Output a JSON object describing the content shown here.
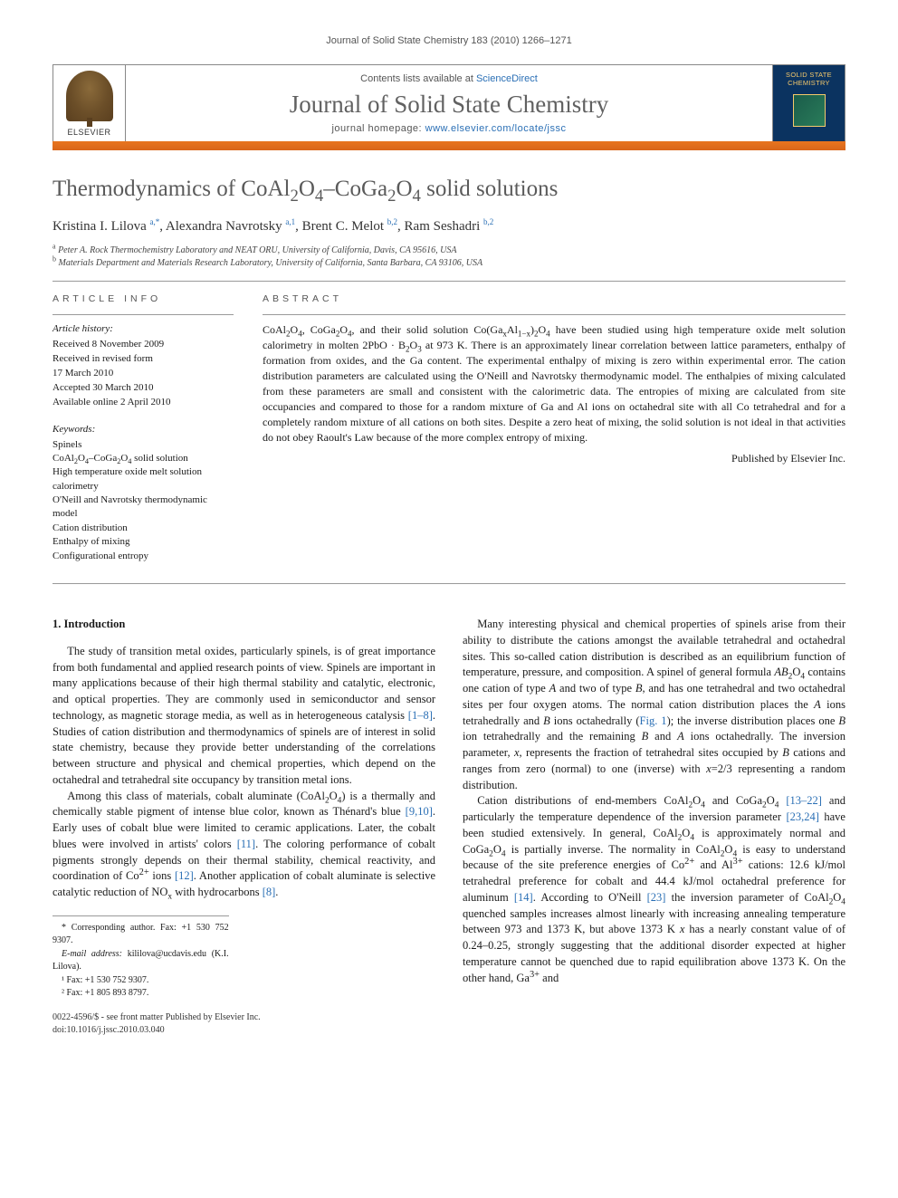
{
  "running_head": "Journal of Solid State Chemistry 183 (2010) 1266–1271",
  "header": {
    "contents_prefix": "Contents lists available at ",
    "contents_link": "ScienceDirect",
    "journal": "Journal of Solid State Chemistry",
    "homepage_prefix": "journal homepage: ",
    "homepage_url": "www.elsevier.com/locate/jssc",
    "publisher": "ELSEVIER",
    "cover_label_1": "SOLID STATE",
    "cover_label_2": "CHEMISTRY"
  },
  "accent_color": "#e8751f",
  "title_html": "Thermodynamics of CoAl<sub>2</sub>O<sub>4</sub>–CoGa<sub>2</sub>O<sub>4</sub> solid solutions",
  "authors_html": "Kristina I. Lilova <sup>a,*</sup>, Alexandra Navrotsky <sup>a,1</sup>, Brent C. Melot <sup>b,2</sup>, Ram Seshadri <sup>b,2</sup>",
  "affiliations": [
    {
      "sup": "a",
      "text": "Peter A. Rock Thermochemistry Laboratory and NEAT ORU, University of California, Davis, CA 95616, USA"
    },
    {
      "sup": "b",
      "text": "Materials Department and Materials Research Laboratory, University of California, Santa Barbara, CA 93106, USA"
    }
  ],
  "article_info": {
    "head": "ARTICLE INFO",
    "history_label": "Article history:",
    "history": [
      "Received 8 November 2009",
      "Received in revised form",
      "17 March 2010",
      "Accepted 30 March 2010",
      "Available online 2 April 2010"
    ],
    "kw_label": "Keywords:",
    "keywords_html": [
      "Spinels",
      "CoAl<sub>2</sub>O<sub>4</sub>–CoGa<sub>2</sub>O<sub>4</sub> solid solution",
      "High temperature oxide melt solution calorimetry",
      "O'Neill and Navrotsky thermodynamic model",
      "Cation distribution",
      "Enthalpy of mixing",
      "Configurational entropy"
    ]
  },
  "abstract": {
    "head": "ABSTRACT",
    "body_html": "CoAl<sub>2</sub>O<sub>4</sub>, CoGa<sub>2</sub>O<sub>4</sub>, and their solid solution Co(Ga<sub>x</sub>Al<sub>1−x</sub>)<sub>2</sub>O<sub>4</sub> have been studied using high temperature oxide melt solution calorimetry in molten 2PbO · B<sub>2</sub>O<sub>3</sub> at 973 K. There is an approximately linear correlation between lattice parameters, enthalpy of formation from oxides, and the Ga content. The experimental enthalpy of mixing is zero within experimental error. The cation distribution parameters are calculated using the O'Neill and Navrotsky thermodynamic model. The enthalpies of mixing calculated from these parameters are small and consistent with the calorimetric data. The entropies of mixing are calculated from site occupancies and compared to those for a random mixture of Ga and Al ions on octahedral site with all Co tetrahedral and for a completely random mixture of all cations on both sites. Despite a zero heat of mixing, the solid solution is not ideal in that activities do not obey Raoult's Law because of the more complex entropy of mixing.",
    "published_by": "Published by Elsevier Inc."
  },
  "intro": {
    "heading": "1. Introduction",
    "p1_html": "The study of transition metal oxides, particularly spinels, is of great importance from both fundamental and applied research points of view. Spinels are important in many applications because of their high thermal stability and catalytic, electronic, and optical properties. They are commonly used in semiconductor and sensor technology, as magnetic storage media, as well as in heterogeneous catalysis <span class=\"ref\">[1–8]</span>. Studies of cation distribution and thermodynamics of spinels are of interest in solid state chemistry, because they provide better understanding of the correlations between structure and physical and chemical properties, which depend on the octahedral and tetrahedral site occupancy by transition metal ions.",
    "p2_html": "Among this class of materials, cobalt aluminate (CoAl<sub>2</sub>O<sub>4</sub>) is a thermally and chemically stable pigment of intense blue color, known as Thénard's blue <span class=\"ref\">[9,10]</span>. Early uses of cobalt blue were limited to ceramic applications. Later, the cobalt blues were involved in artists' colors <span class=\"ref\">[11]</span>. The coloring performance of cobalt pigments strongly depends on their thermal stability, chemical reactivity, and coordination of Co<sup>2+</sup> ions <span class=\"ref\">[12]</span>. Another application of cobalt aluminate is selective catalytic reduction of NO<sub>x</sub> with hydrocarbons <span class=\"ref\">[8]</span>.",
    "p3_html": "Many interesting physical and chemical properties of spinels arise from their ability to distribute the cations amongst the available tetrahedral and octahedral sites. This so-called cation distribution is described as an equilibrium function of temperature, pressure, and composition. A spinel of general formula <i>AB</i><sub>2</sub>O<sub>4</sub> contains one cation of type <i>A</i> and two of type <i>B</i>, and has one tetrahedral and two octahedral sites per four oxygen atoms. The normal cation distribution places the <i>A</i> ions tetrahedrally and <i>B</i> ions octahedrally (<span class=\"ref\">Fig. 1</span>); the inverse distribution places one <i>B</i> ion tetrahedrally and the remaining <i>B</i> and <i>A</i> ions octahedrally. The inversion parameter, <i>x</i>, represents the fraction of tetrahedral sites occupied by <i>B</i> cations and ranges from zero (normal) to one (inverse) with <i>x</i>=2/3 representing a random distribution.",
    "p4_html": "Cation distributions of end-members CoAl<sub>2</sub>O<sub>4</sub> and CoGa<sub>2</sub>O<sub>4</sub> <span class=\"ref\">[13–22]</span> and particularly the temperature dependence of the inversion parameter <span class=\"ref\">[23,24]</span> have been studied extensively. In general, CoAl<sub>2</sub>O<sub>4</sub> is approximately normal and CoGa<sub>2</sub>O<sub>4</sub> is partially inverse. The normality in CoAl<sub>2</sub>O<sub>4</sub> is easy to understand because of the site preference energies of Co<sup>2+</sup> and Al<sup>3+</sup> cations: 12.6 kJ/mol tetrahedral preference for cobalt and 44.4 kJ/mol octahedral preference for aluminum <span class=\"ref\">[14]</span>. According to O'Neill <span class=\"ref\">[23]</span> the inversion parameter of CoAl<sub>2</sub>O<sub>4</sub> quenched samples increases almost linearly with increasing annealing temperature between 973 and 1373 K, but above 1373 K <i>x</i> has a nearly constant value of of 0.24–0.25, strongly suggesting that the additional disorder expected at higher temperature cannot be quenched due to rapid equilibration above 1373 K. On the other hand, Ga<sup>3+</sup> and"
  },
  "footnotes": {
    "corr": "* Corresponding author. Fax: +1 530 752 9307.",
    "email_label": "E-mail address:",
    "email": "kililova@ucdavis.edu (K.I. Lilova).",
    "f1": "¹ Fax: +1 530 752 9307.",
    "f2": "² Fax: +1 805 893 8797."
  },
  "copyright": {
    "line1": "0022-4596/$ - see front matter Published by Elsevier Inc.",
    "line2": "doi:10.1016/j.jssc.2010.03.040"
  },
  "colors": {
    "link": "#2a6fb5",
    "title": "#5a5a5a",
    "text": "#1a1a1a",
    "cover_bg": "#0b3360",
    "cover_accent": "#f5c96b"
  }
}
